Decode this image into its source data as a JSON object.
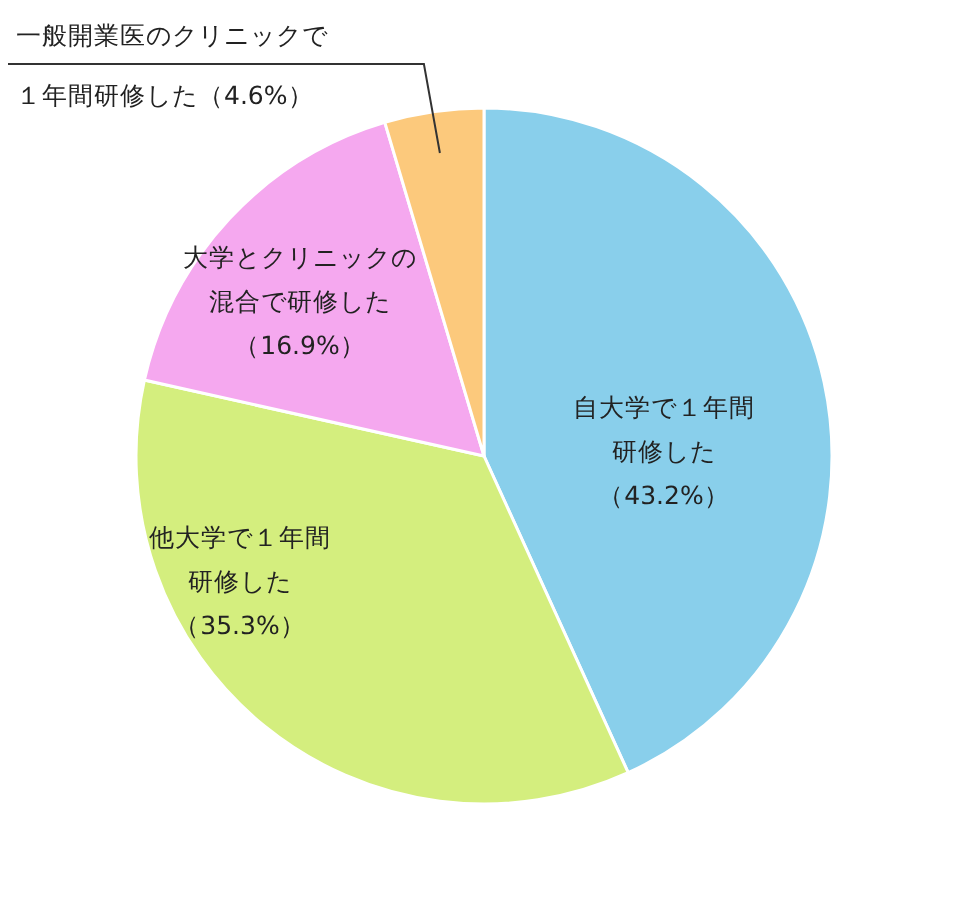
{
  "chart_data": {
    "type": "pie",
    "categories": [
      "自大学で１年間研修した",
      "他大学で１年間研修した",
      "大学とクリニックの混合で研修した",
      "一般開業医のクリニックで１年間研修した"
    ],
    "values": [
      43.2,
      35.3,
      16.9,
      4.6
    ],
    "value_labels": [
      "（43.2%）",
      "（35.3%）",
      "（16.9%）",
      "（4.6%）"
    ],
    "colors": [
      "#89cfeb",
      "#d4ee7e",
      "#f5a8ef",
      "#fcc97c"
    ]
  }
}
